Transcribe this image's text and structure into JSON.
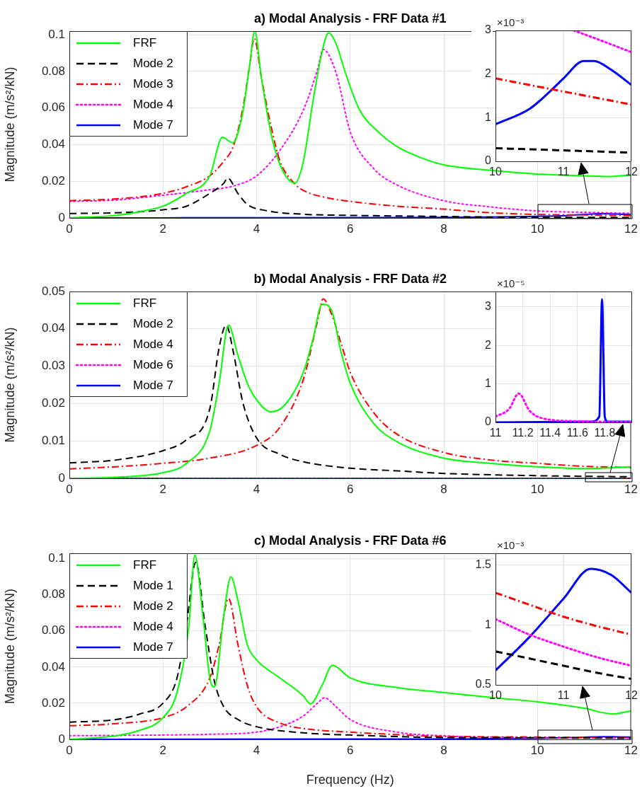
{
  "chart_data": [
    {
      "type": "line",
      "title": "a) Modal Analysis - FRF Data #1",
      "ylabel": "Magnitude (m/s²/kN)",
      "xlim": [
        0,
        12
      ],
      "xticks": [
        0,
        2,
        4,
        6,
        8,
        10,
        12
      ],
      "ylim": [
        0,
        0.102
      ],
      "yticks": [
        0,
        0.02,
        0.04,
        0.06,
        0.08,
        0.1
      ],
      "grid": true,
      "legend": "top left",
      "series": [
        {
          "name": "FRF",
          "color": "#00ff00",
          "line_style": "solid",
          "x": [
            0,
            1,
            1.5,
            2,
            2.5,
            3,
            3.27,
            3.49,
            3.7,
            3.85,
            3.96,
            4.1,
            4.3,
            4.5,
            4.82,
            5,
            5.2,
            5.4,
            5.54,
            5.7,
            5.9,
            6.2,
            6.6,
            7,
            7.5,
            8,
            9,
            10,
            11,
            11.5,
            12
          ],
          "values": [
            0,
            0.0014,
            0.0034,
            0.0064,
            0.0134,
            0.023,
            0.044,
            0.041,
            0.057,
            0.083,
            0.102,
            0.077,
            0.047,
            0.029,
            0.019,
            0.031,
            0.063,
            0.091,
            0.101,
            0.095,
            0.079,
            0.059,
            0.047,
            0.039,
            0.033,
            0.029,
            0.026,
            0.024,
            0.023,
            0.0226,
            0.0234
          ]
        },
        {
          "name": "Mode 2",
          "color": "#000000",
          "line_style": "dashed",
          "x": [
            0,
            1,
            2,
            2.5,
            3,
            3.3,
            3.38,
            3.6,
            3.8,
            4.2,
            5,
            6,
            8,
            10,
            11,
            12
          ],
          "values": [
            0.0024,
            0.0028,
            0.0044,
            0.0064,
            0.0134,
            0.019,
            0.0218,
            0.0134,
            0.0074,
            0.004,
            0.002,
            0.0014,
            0.0008,
            0.0003,
            0.0003,
            0.0002
          ]
        },
        {
          "name": "Mode 3",
          "color": "#ff0000",
          "line_style": "dashdot",
          "x": [
            0,
            1,
            2,
            2.5,
            3,
            3.3,
            3.5,
            3.7,
            3.85,
            3.95,
            4.1,
            4.3,
            4.5,
            4.8,
            5,
            5.5,
            6,
            7,
            8,
            9,
            10,
            11,
            12
          ],
          "values": [
            0.0094,
            0.0104,
            0.0134,
            0.017,
            0.023,
            0.031,
            0.039,
            0.059,
            0.083,
            0.098,
            0.077,
            0.051,
            0.031,
            0.019,
            0.015,
            0.011,
            0.009,
            0.0064,
            0.0048,
            0.0028,
            0.0019,
            0.0016,
            0.0013
          ]
        },
        {
          "name": "Mode 4",
          "color": "#ff00ff",
          "line_style": "dotted",
          "x": [
            0,
            1,
            2,
            3,
            3.5,
            4,
            4.5,
            5,
            5.3,
            5.42,
            5.7,
            6,
            6.5,
            7,
            8,
            9,
            10,
            11.15,
            12
          ],
          "values": [
            0.009,
            0.0098,
            0.0124,
            0.0154,
            0.0174,
            0.023,
            0.037,
            0.059,
            0.081,
            0.092,
            0.079,
            0.047,
            0.027,
            0.018,
            0.0094,
            0.006,
            0.0038,
            0.003,
            0.0025
          ]
        },
        {
          "name": "Mode 7",
          "color": "#0000ff",
          "line_style": "solid",
          "x": [
            0,
            4,
            8,
            9,
            10,
            10.5,
            10.8,
            11,
            11.3,
            11.45,
            11.7,
            12
          ],
          "values": [
            0,
            0.0001,
            0.0003,
            0.0005,
            0.0009,
            0.0012,
            0.0016,
            0.0019,
            0.0023,
            0.0023,
            0.0021,
            0.0018
          ]
        }
      ]
    },
    {
      "type": "line",
      "annotations": [
        "×10⁻³"
      ],
      "xlim": [
        10,
        12
      ],
      "xticks": [
        10,
        11,
        12
      ],
      "ylim": [
        0,
        3
      ],
      "yticks": [
        0,
        1,
        2,
        3
      ],
      "grid": true,
      "series": [
        {
          "color": "#000000",
          "line_style": "dashed",
          "x": [
            10,
            11,
            12
          ],
          "values": [
            0.3,
            0.25,
            0.2
          ]
        },
        {
          "color": "#ff0000",
          "line_style": "dashdot",
          "x": [
            10,
            10.5,
            11,
            11.5,
            12
          ],
          "values": [
            1.9,
            1.75,
            1.6,
            1.45,
            1.3
          ]
        },
        {
          "color": "#ff00ff",
          "line_style": "dotted",
          "x": [
            11.15,
            11.5,
            12
          ],
          "values": [
            3,
            2.8,
            2.5
          ]
        },
        {
          "color": "#0000ff",
          "line_style": "solid",
          "x": [
            10,
            10.5,
            10.8,
            11,
            11.3,
            11.45,
            11.7,
            12
          ],
          "values": [
            0.85,
            1.2,
            1.6,
            1.9,
            2.3,
            2.3,
            2.1,
            1.75
          ]
        }
      ]
    },
    {
      "type": "line",
      "title": "b) Modal Analysis - FRF Data #2",
      "ylabel": "Magnitude (m/s²/kN)",
      "xlim": [
        0,
        12
      ],
      "xticks": [
        0,
        2,
        4,
        6,
        8,
        10,
        12
      ],
      "ylim": [
        0,
        0.05
      ],
      "yticks": [
        0,
        0.01,
        0.02,
        0.03,
        0.04,
        0.05
      ],
      "grid": true,
      "legend": "top left",
      "series": [
        {
          "name": "FRF",
          "color": "#00ff00",
          "line_style": "solid",
          "x": [
            0,
            1,
            2,
            2.5,
            3,
            3.2,
            3.4,
            3.6,
            3.8,
            4,
            4.3,
            4.6,
            5,
            5.2,
            5.4,
            5.6,
            5.8,
            6,
            6.5,
            7,
            8,
            9,
            10,
            11,
            12
          ],
          "values": [
            0,
            0.0003,
            0.0015,
            0.004,
            0.0127,
            0.0255,
            0.041,
            0.033,
            0.0255,
            0.021,
            0.0178,
            0.0196,
            0.0284,
            0.037,
            0.0466,
            0.045,
            0.034,
            0.0255,
            0.0147,
            0.0098,
            0.0054,
            0.004,
            0.0031,
            0.0026,
            0.0031
          ]
        },
        {
          "name": "Mode 2",
          "color": "#000000",
          "line_style": "dashed",
          "x": [
            0,
            1,
            2,
            2.5,
            3,
            3.2,
            3.35,
            3.5,
            3.7,
            4,
            4.5,
            5,
            6,
            7,
            8,
            10,
            12
          ],
          "values": [
            0.0041,
            0.0049,
            0.0074,
            0.0103,
            0.0186,
            0.035,
            0.041,
            0.034,
            0.0206,
            0.0108,
            0.0064,
            0.0044,
            0.0027,
            0.002,
            0.0013,
            0.0007,
            0.0004
          ]
        },
        {
          "name": "Mode 4",
          "color": "#ff0000",
          "line_style": "dashdot",
          "x": [
            0,
            1,
            2,
            3,
            4,
            4.5,
            5,
            5.3,
            5.42,
            5.6,
            5.8,
            6,
            6.5,
            7,
            8,
            9,
            10,
            11,
            12
          ],
          "values": [
            0.0025,
            0.0031,
            0.004,
            0.0054,
            0.0088,
            0.0137,
            0.0265,
            0.042,
            0.048,
            0.044,
            0.0363,
            0.0284,
            0.0176,
            0.0118,
            0.0069,
            0.0049,
            0.004,
            0.0032,
            0.0029
          ]
        },
        {
          "name": "Mode 6",
          "color": "#ff00ff",
          "line_style": "dotted",
          "x": [
            0,
            12
          ],
          "values": [
            0,
            0
          ]
        },
        {
          "name": "Mode 7",
          "color": "#0000ff",
          "line_style": "solid",
          "x": [
            0,
            12
          ],
          "values": [
            0,
            0
          ]
        }
      ]
    },
    {
      "type": "line",
      "annotations": [
        "×10⁻⁵"
      ],
      "xlim": [
        11,
        12
      ],
      "xticks": [
        11,
        11.2,
        11.4,
        11.6,
        11.8
      ],
      "ylim": [
        0,
        3.4
      ],
      "yticks": [
        0,
        1,
        2,
        3
      ],
      "grid": true,
      "series": [
        {
          "color": "#ff00ff",
          "line_style": "dotted",
          "x": [
            11,
            11.1,
            11.17,
            11.25,
            11.35,
            11.6,
            12
          ],
          "values": [
            0.15,
            0.35,
            0.75,
            0.3,
            0.1,
            0.03,
            0.01
          ]
        },
        {
          "color": "#0000ff",
          "line_style": "solid",
          "x": [
            11,
            11.7,
            11.76,
            11.78,
            11.8,
            11.82,
            12
          ],
          "values": [
            0,
            0.02,
            0.15,
            3.2,
            0.15,
            0.02,
            0.02
          ]
        }
      ]
    },
    {
      "type": "line",
      "title": "c) Modal Analysis - FRF Data #6",
      "xlabel": "Frequency (Hz)",
      "ylabel": "Magnitude (m/s²/kN)",
      "xlim": [
        0,
        12
      ],
      "xticks": [
        0,
        2,
        4,
        6,
        8,
        10,
        12
      ],
      "ylim": [
        0,
        0.103
      ],
      "yticks": [
        0,
        0.02,
        0.04,
        0.06,
        0.08,
        0.1
      ],
      "grid": true,
      "legend": "top left",
      "series": [
        {
          "name": "FRF",
          "color": "#00ff00",
          "line_style": "solid",
          "x": [
            0,
            1,
            1.5,
            2,
            2.3,
            2.55,
            2.68,
            2.85,
            3,
            3.1,
            3.3,
            3.45,
            3.6,
            3.8,
            4,
            4.5,
            5,
            5.15,
            5.4,
            5.62,
            6,
            7,
            8,
            9,
            10,
            11,
            11.6,
            12
          ],
          "values": [
            0,
            0.002,
            0.005,
            0.012,
            0.026,
            0.062,
            0.102,
            0.069,
            0.034,
            0.029,
            0.069,
            0.09,
            0.077,
            0.0525,
            0.044,
            0.034,
            0.024,
            0.0196,
            0.03,
            0.041,
            0.034,
            0.0287,
            0.0259,
            0.0232,
            0.0208,
            0.0172,
            0.0141,
            0.0158
          ]
        },
        {
          "name": "Mode 1",
          "color": "#000000",
          "line_style": "dashed",
          "x": [
            0,
            1,
            1.5,
            2,
            2.3,
            2.5,
            2.7,
            2.9,
            3.1,
            3.3,
            3.6,
            4,
            5,
            6,
            8,
            10,
            11,
            12
          ],
          "values": [
            0.0095,
            0.011,
            0.014,
            0.02,
            0.034,
            0.063,
            0.098,
            0.063,
            0.032,
            0.018,
            0.011,
            0.007,
            0.0036,
            0.0024,
            0.001,
            0.0008,
            0.0007,
            0.0006
          ]
        },
        {
          "name": "Mode 2",
          "color": "#ff0000",
          "line_style": "dashdot",
          "x": [
            0,
            1,
            2,
            2.5,
            3,
            3.2,
            3.4,
            3.6,
            3.8,
            4,
            4.5,
            5,
            6,
            7,
            8,
            10,
            11,
            12
          ],
          "values": [
            0.0075,
            0.0087,
            0.012,
            0.018,
            0.034,
            0.0525,
            0.078,
            0.0525,
            0.03,
            0.018,
            0.009,
            0.006,
            0.004,
            0.0026,
            0.0016,
            0.0013,
            0.0011,
            0.0009
          ]
        },
        {
          "name": "Mode 4",
          "color": "#ff00ff",
          "line_style": "dotted",
          "x": [
            0,
            2,
            3,
            4,
            4.5,
            5,
            5.3,
            5.45,
            5.7,
            6,
            7,
            8,
            10,
            11,
            12
          ],
          "values": [
            0.002,
            0.0024,
            0.0028,
            0.004,
            0.007,
            0.013,
            0.02,
            0.023,
            0.018,
            0.011,
            0.004,
            0.002,
            0.001,
            0.0008,
            0.0007
          ]
        },
        {
          "name": "Mode 7",
          "color": "#0000ff",
          "line_style": "solid",
          "x": [
            0,
            8,
            9,
            10,
            10.5,
            11,
            11.4,
            11.7,
            12
          ],
          "values": [
            0,
            0.0002,
            0.0004,
            0.0006,
            0.0009,
            0.0012,
            0.0015,
            0.0014,
            0.0013
          ]
        }
      ]
    },
    {
      "type": "line",
      "annotations": [
        "×10⁻³"
      ],
      "xlim": [
        10,
        12
      ],
      "xticks": [
        10,
        11,
        12
      ],
      "ylim": [
        0.5,
        1.6
      ],
      "yticks": [
        0.5,
        1,
        1.5
      ],
      "grid": true,
      "series": [
        {
          "color": "#000000",
          "line_style": "dashed",
          "x": [
            10,
            10.5,
            11,
            11.5,
            12
          ],
          "values": [
            0.78,
            0.72,
            0.66,
            0.6,
            0.55
          ]
        },
        {
          "color": "#ff0000",
          "line_style": "dashdot",
          "x": [
            10,
            10.5,
            11,
            11.5,
            12
          ],
          "values": [
            1.27,
            1.17,
            1.07,
            0.99,
            0.92
          ]
        },
        {
          "color": "#ff00ff",
          "line_style": "dotted",
          "x": [
            10,
            10.5,
            11,
            11.5,
            12
          ],
          "values": [
            1.05,
            0.92,
            0.82,
            0.73,
            0.66
          ]
        },
        {
          "color": "#0000ff",
          "line_style": "solid",
          "x": [
            10,
            10.5,
            11,
            11.4,
            11.7,
            12
          ],
          "values": [
            0.62,
            0.9,
            1.22,
            1.47,
            1.42,
            1.27
          ]
        }
      ]
    }
  ]
}
